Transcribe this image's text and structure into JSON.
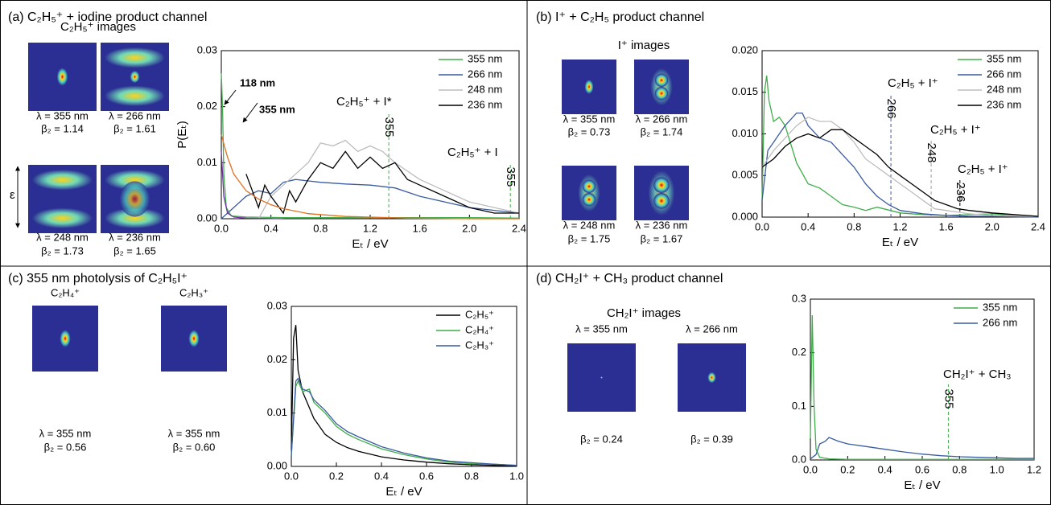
{
  "panels": [
    {
      "title": "(a) C₂H₅⁺ + iodine product channel",
      "images": {
        "heading": "C₂H₅⁺ images",
        "items": [
          {
            "wavelength": "λ = 355 nm",
            "beta": "β₂ = 1.14"
          },
          {
            "wavelength": "λ = 266 nm",
            "beta": "β₂ = 1.61"
          },
          {
            "wavelength": "λ = 248 nm",
            "beta": "β₂ = 1.73"
          },
          {
            "wavelength": "λ = 236 nm",
            "beta": "β₂ = 1.65"
          }
        ]
      },
      "polarization_label": "ε",
      "chart_data": {
        "type": "line",
        "xlabel": "Eₜ / eV",
        "ylabel": "P(Eₜ)",
        "legend": "upper right",
        "grid": false,
        "xlim": [
          0,
          2.4
        ],
        "ylim": [
          0,
          0.03
        ],
        "xticks": [
          {
            "value": 0,
            "label": "0.0"
          },
          0.4,
          0.8,
          1.2,
          1.6,
          {
            "value": 2,
            "label": "2.0"
          },
          2.4
        ],
        "yticks": [
          {
            "value": 0,
            "label": "0.00"
          },
          0.01,
          0.02,
          0.03
        ],
        "series": [
          {
            "name": "355 nm",
            "color": "#3fae49",
            "x": [
              0,
              0.01,
              0.02,
              0.04,
              0.08,
              0.2,
              0.5,
              1.0,
              1.5,
              2.0,
              2.4
            ],
            "values": [
              0.026,
              0.02,
              0.008,
              0.002,
              0.0005,
              0.0003,
              0.0002,
              0.0002,
              0.0002,
              0.0002,
              0.0001
            ]
          },
          {
            "name": "266 nm",
            "color": "#3a5ba0",
            "x": [
              0,
              0.1,
              0.2,
              0.3,
              0.4,
              0.5,
              0.6,
              0.8,
              1.0,
              1.2,
              1.4,
              1.6,
              1.8,
              2.0,
              2.2,
              2.4
            ],
            "values": [
              0,
              0.002,
              0.004,
              0.005,
              0.0045,
              0.0065,
              0.007,
              0.0065,
              0.0062,
              0.006,
              0.0055,
              0.004,
              0.003,
              0.002,
              0.0015,
              0.001
            ]
          },
          {
            "name": "248 nm",
            "color": "#bdbdbd",
            "x": [
              0.3,
              0.4,
              0.5,
              0.6,
              0.7,
              0.8,
              0.9,
              1.0,
              1.1,
              1.2,
              1.3,
              1.4,
              1.6,
              1.8,
              2.0,
              2.2,
              2.4
            ],
            "values": [
              0,
              0.004,
              0.006,
              0.008,
              0.01,
              0.0135,
              0.013,
              0.014,
              0.012,
              0.013,
              0.012,
              0.01,
              0.007,
              0.005,
              0.003,
              0.002,
              0.001
            ]
          },
          {
            "name": "236 nm",
            "color": "#000000",
            "x": [
              0.2,
              0.3,
              0.35,
              0.4,
              0.5,
              0.55,
              0.6,
              0.7,
              0.8,
              0.9,
              1.0,
              1.1,
              1.2,
              1.3,
              1.4,
              1.5,
              1.6,
              1.8,
              2.0,
              2.2,
              2.4
            ],
            "values": [
              0.008,
              0.002,
              0.006,
              0.004,
              0.001,
              0.005,
              0.003,
              0.007,
              0.01,
              0.009,
              0.012,
              0.009,
              0.011,
              0.009,
              0.01,
              0.007,
              0.006,
              0.004,
              0.002,
              0.001,
              0.001
            ]
          },
          {
            "name": "118 nm",
            "color": "#7030a0",
            "legend": false,
            "x": [
              0,
              0.02,
              0.05,
              0.1,
              0.2,
              0.5
            ],
            "values": [
              0.012,
              0.004,
              0.001,
              0.0003,
              0.0001,
              0
            ]
          },
          {
            "name": "355 nm",
            "color": "#e0701f",
            "legend": false,
            "x": [
              0,
              0.05,
              0.1,
              0.2,
              0.3,
              0.4,
              0.5,
              0.7,
              1.0,
              1.5,
              2.0,
              2.4
            ],
            "values": [
              0.015,
              0.011,
              0.008,
              0.005,
              0.0035,
              0.0025,
              0.0018,
              0.0009,
              0.0004,
              0.0001,
              0,
              0
            ]
          }
        ],
        "annotations": [
          {
            "text": "C₂H₅⁺ + I*",
            "x": 1.35,
            "label": "355",
            "color": "#3fae49"
          },
          {
            "text": "C₂H₅⁺ + I",
            "x": 2.33,
            "label": "355",
            "color": "#3fae49"
          }
        ]
      }
    },
    {
      "title": "(b) I⁺ + C₂H₅ product channel",
      "images": {
        "heading": "I⁺ images",
        "items": [
          {
            "wavelength": "λ = 355 nm",
            "beta": "β₂ = 0.73"
          },
          {
            "wavelength": "λ = 266 nm",
            "beta": "β₂ = 1.74"
          },
          {
            "wavelength": "λ = 248 nm",
            "beta": "β₂ = 1.75"
          },
          {
            "wavelength": "λ = 236 nm",
            "beta": "β₂ = 1.67"
          }
        ]
      },
      "chart_data": {
        "type": "line",
        "xlabel": "Eₜ / eV",
        "legend": "upper right",
        "grid": false,
        "xlim": [
          0,
          2.4
        ],
        "ylim": [
          0,
          0.02
        ],
        "xticks": [
          {
            "value": 0,
            "label": "0.0"
          },
          0.4,
          0.8,
          1.2,
          1.6,
          {
            "value": 2,
            "label": "2.0"
          },
          2.4
        ],
        "yticks": [
          {
            "value": 0,
            "label": "0.000"
          },
          0.005,
          {
            "value": 0.01,
            "label": "0.010"
          },
          0.015,
          {
            "value": 0.02,
            "label": "0.020"
          }
        ],
        "series": [
          {
            "name": "355 nm",
            "color": "#3fae49",
            "x": [
              0,
              0.02,
              0.04,
              0.06,
              0.1,
              0.15,
              0.2,
              0.3,
              0.4,
              0.5,
              0.6,
              0.7,
              0.8,
              0.9,
              1.0,
              1.2,
              1.4,
              1.6,
              1.8,
              2.0,
              2.2,
              2.4
            ],
            "values": [
              0.002,
              0.015,
              0.017,
              0.014,
              0.0115,
              0.012,
              0.011,
              0.0065,
              0.004,
              0.0035,
              0.0025,
              0.0015,
              0.0012,
              0.0008,
              0.0012,
              0.0005,
              0.0003,
              0.0002,
              0.0003,
              0.0004,
              0.0002,
              0.0001
            ]
          },
          {
            "name": "266 nm",
            "color": "#3a5ba0",
            "x": [
              0,
              0.05,
              0.1,
              0.15,
              0.2,
              0.3,
              0.35,
              0.4,
              0.5,
              0.6,
              0.7,
              0.8,
              0.9,
              1.0,
              1.1,
              1.2,
              1.4,
              1.6,
              1.8,
              2.0,
              2.4
            ],
            "values": [
              0.002,
              0.008,
              0.009,
              0.01,
              0.011,
              0.0125,
              0.0125,
              0.011,
              0.0095,
              0.009,
              0.0075,
              0.006,
              0.004,
              0.0025,
              0.0015,
              0.0008,
              0.0004,
              0.0002,
              0.0001,
              0.0001,
              0
            ]
          },
          {
            "name": "248 nm",
            "color": "#bdbdbd",
            "x": [
              0,
              0.1,
              0.2,
              0.3,
              0.4,
              0.5,
              0.6,
              0.7,
              0.8,
              0.9,
              1.0,
              1.1,
              1.2,
              1.3,
              1.4,
              1.5,
              1.6,
              1.8,
              2.0,
              2.4
            ],
            "values": [
              0.006,
              0.008,
              0.0095,
              0.011,
              0.012,
              0.0115,
              0.0115,
              0.0105,
              0.009,
              0.007,
              0.006,
              0.005,
              0.004,
              0.003,
              0.002,
              0.001,
              0.0008,
              0.0004,
              0.0002,
              0.0001
            ]
          },
          {
            "name": "236 nm",
            "color": "#000000",
            "x": [
              0,
              0.1,
              0.2,
              0.3,
              0.4,
              0.5,
              0.6,
              0.7,
              0.8,
              0.9,
              1.0,
              1.1,
              1.2,
              1.3,
              1.4,
              1.5,
              1.6,
              1.7,
              1.8,
              2.0,
              2.2,
              2.4
            ],
            "values": [
              0.006,
              0.007,
              0.0085,
              0.0095,
              0.01,
              0.0095,
              0.0105,
              0.0105,
              0.0095,
              0.0085,
              0.0075,
              0.006,
              0.005,
              0.004,
              0.003,
              0.002,
              0.0015,
              0.001,
              0.0008,
              0.0005,
              0.0003,
              0.0001
            ]
          }
        ],
        "annotations": [
          {
            "text": "C₂H₅ + I⁺",
            "x": 1.12,
            "label": "266",
            "color": "#3a5ba0"
          },
          {
            "text": "C₂H₅ + I⁺",
            "x": 1.47,
            "label": "248",
            "color": "#9e9e9e"
          },
          {
            "text": "C₂H₅ + I⁺",
            "x": 1.72,
            "label": "236",
            "color": "#000000"
          }
        ]
      }
    },
    {
      "title": "(c) 355 nm photolysis of C₂H₅I⁺",
      "images": {
        "items": [
          {
            "species": "C₂H₄⁺",
            "wavelength": "λ = 355 nm",
            "beta": "β₂ = 0.56"
          },
          {
            "species": "C₂H₃⁺",
            "wavelength": "λ = 355 nm",
            "beta": "β₂ = 0.60"
          }
        ]
      },
      "chart_data": {
        "type": "line",
        "xlabel": "Eₜ / eV",
        "legend": "upper right",
        "grid": false,
        "xlim": [
          0,
          1
        ],
        "ylim": [
          0,
          0.03
        ],
        "xticks": [
          {
            "value": 0,
            "label": "0.0"
          },
          0.2,
          0.4,
          0.6,
          0.8,
          {
            "value": 1,
            "label": "1.0"
          }
        ],
        "yticks": [
          {
            "value": 0,
            "label": "0.00"
          },
          0.01,
          0.02,
          0.03
        ],
        "series": [
          {
            "name": "C₂H₅⁺",
            "color": "#000000",
            "x": [
              0,
              0.01,
              0.02,
              0.03,
              0.05,
              0.08,
              0.1,
              0.15,
              0.2,
              0.25,
              0.3,
              0.4,
              0.5,
              0.6,
              0.7,
              0.8,
              0.9,
              1.0
            ],
            "values": [
              0.003,
              0.024,
              0.0265,
              0.018,
              0.014,
              0.011,
              0.009,
              0.006,
              0.0045,
              0.0035,
              0.0028,
              0.0018,
              0.0012,
              0.0008,
              0.0005,
              0.0003,
              0.0002,
              0.0001
            ]
          },
          {
            "name": "C₂H₄⁺",
            "color": "#3fae49",
            "x": [
              0,
              0.02,
              0.03,
              0.05,
              0.08,
              0.1,
              0.15,
              0.2,
              0.25,
              0.3,
              0.4,
              0.5,
              0.6,
              0.7,
              0.8,
              0.9,
              1.0
            ],
            "values": [
              0.002,
              0.015,
              0.016,
              0.014,
              0.0145,
              0.012,
              0.01,
              0.0075,
              0.006,
              0.005,
              0.0033,
              0.0022,
              0.0014,
              0.0008,
              0.0005,
              0.0004,
              0.0002
            ]
          },
          {
            "name": "C₂H₃⁺",
            "color": "#3a5ba0",
            "x": [
              0,
              0.02,
              0.03,
              0.05,
              0.08,
              0.1,
              0.15,
              0.2,
              0.25,
              0.3,
              0.4,
              0.5,
              0.6,
              0.7,
              0.8,
              0.9,
              1.0
            ],
            "values": [
              0.002,
              0.016,
              0.0165,
              0.0145,
              0.014,
              0.0125,
              0.0105,
              0.008,
              0.0065,
              0.0055,
              0.0037,
              0.0025,
              0.0016,
              0.001,
              0.0007,
              0.0004,
              0.0002
            ]
          }
        ]
      }
    },
    {
      "title": "(d) CH₂I⁺ + CH₃ product channel",
      "images": {
        "heading": "CH₂I⁺ images",
        "items": [
          {
            "wavelength": "λ = 355 nm",
            "beta": "β₂ = 0.24"
          },
          {
            "wavelength": "λ = 266 nm",
            "beta": "β₂ = 0.39"
          }
        ]
      },
      "chart_data": {
        "type": "line",
        "xlabel": "Eₜ / eV",
        "legend": "upper right",
        "grid": false,
        "xlim": [
          0,
          1.2
        ],
        "ylim": [
          0,
          0.3
        ],
        "xticks": [
          {
            "value": 0,
            "label": "0.0"
          },
          0.2,
          0.4,
          0.6,
          0.8,
          {
            "value": 1,
            "label": "1.0"
          },
          1.2
        ],
        "yticks": [
          {
            "value": 0,
            "label": "0.0"
          },
          0.1,
          0.2,
          0.3
        ],
        "series": [
          {
            "name": "355 nm",
            "color": "#3fae49",
            "x": [
              0,
              0.01,
              0.02,
              0.03,
              0.05,
              0.1,
              0.2,
              0.5,
              0.8,
              1.0,
              1.2
            ],
            "values": [
              0.04,
              0.27,
              0.1,
              0.02,
              0.005,
              0.002,
              0.001,
              0.001,
              0.001,
              0.001,
              0.001
            ]
          },
          {
            "name": "266 nm",
            "color": "#3a5ba0",
            "x": [
              0,
              0.03,
              0.05,
              0.08,
              0.1,
              0.15,
              0.2,
              0.3,
              0.4,
              0.5,
              0.6,
              0.7,
              0.8,
              0.9,
              1.0,
              1.1,
              1.2
            ],
            "values": [
              0.002,
              0.01,
              0.03,
              0.035,
              0.042,
              0.035,
              0.03,
              0.025,
              0.02,
              0.015,
              0.011,
              0.008,
              0.006,
              0.005,
              0.004,
              0.003,
              0.003
            ]
          }
        ],
        "annotations": [
          {
            "text": "CH₂I⁺ + CH₃",
            "x": 0.74,
            "label": "355",
            "color": "#3fae49"
          }
        ]
      }
    }
  ]
}
